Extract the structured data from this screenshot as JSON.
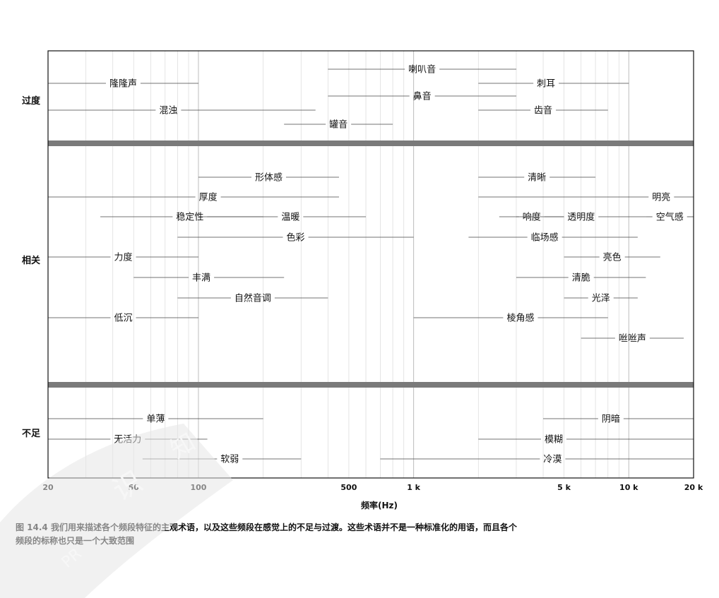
{
  "chart_data": {
    "type": "range",
    "xlabel": "频率(Hz)",
    "xscale": "log",
    "xlim": [
      20,
      20000
    ],
    "xticks": [
      {
        "value": 20,
        "label": "20"
      },
      {
        "value": 50,
        "label": "50"
      },
      {
        "value": 100,
        "label": "100"
      },
      {
        "value": 500,
        "label": "500"
      },
      {
        "value": 1000,
        "label": "1 k"
      },
      {
        "value": 5000,
        "label": "5 k"
      },
      {
        "value": 10000,
        "label": "10 k"
      },
      {
        "value": 20000,
        "label": "20 k"
      }
    ],
    "groups": [
      {
        "name": "过度",
        "terms": [
          {
            "label": "喇叭音",
            "from": 400,
            "to": 3000
          },
          {
            "label": "隆隆声",
            "from": 20,
            "to": 100
          },
          {
            "label": "刺耳",
            "from": 2000,
            "to": 10000
          },
          {
            "label": "鼻音",
            "from": 400,
            "to": 3000
          },
          {
            "label": "混浊",
            "from": 20,
            "to": 350
          },
          {
            "label": "齿音",
            "from": 2000,
            "to": 8000
          },
          {
            "label": "罐音",
            "from": 250,
            "to": 800
          }
        ]
      },
      {
        "name": "相关",
        "terms": [
          {
            "label": "形体感",
            "from": 100,
            "to": 450
          },
          {
            "label": "清晰",
            "from": 2000,
            "to": 7000
          },
          {
            "label": "厚度",
            "from": 20,
            "to": 450
          },
          {
            "label": "明亮",
            "from": 2000,
            "to": 20000
          },
          {
            "label": "温暖",
            "from": 100,
            "to": 600
          },
          {
            "label": "响度",
            "from": 2500,
            "to": 5000
          },
          {
            "label": "空气感",
            "from": 12000,
            "to": 20000
          },
          {
            "label": "稳定性",
            "from": 35,
            "to": 200
          },
          {
            "label": "透明度",
            "from": 3000,
            "to": 12000
          },
          {
            "label": "色彩",
            "from": 80,
            "to": 1000
          },
          {
            "label": "临场感",
            "from": 1800,
            "to": 11000
          },
          {
            "label": "力度",
            "from": 20,
            "to": 100
          },
          {
            "label": "亮色",
            "from": 5000,
            "to": 14000
          },
          {
            "label": "丰满",
            "from": 50,
            "to": 250
          },
          {
            "label": "清脆",
            "from": 3000,
            "to": 12000
          },
          {
            "label": "自然音调",
            "from": 80,
            "to": 400
          },
          {
            "label": "光泽",
            "from": 5000,
            "to": 11000
          },
          {
            "label": "低沉",
            "from": 20,
            "to": 100
          },
          {
            "label": "棱角感",
            "from": 1000,
            "to": 8000
          },
          {
            "label": "咝咝声",
            "from": 6000,
            "to": 18000
          }
        ]
      },
      {
        "name": "不足",
        "terms": [
          {
            "label": "单薄",
            "from": 20,
            "to": 200
          },
          {
            "label": "阴暗",
            "from": 4000,
            "to": 20000
          },
          {
            "label": "无活力",
            "from": 20,
            "to": 110
          },
          {
            "label": "模糊",
            "from": 2000,
            "to": 20000
          },
          {
            "label": "软弱",
            "from": 55,
            "to": 300
          },
          {
            "label": "冷漠",
            "from": 700,
            "to": 20000
          }
        ]
      }
    ],
    "grid": "vertical minor gridlines on log scale"
  },
  "caption": {
    "line1": "图 14.4   我们用来描述各个频段特征的主观术语，以及这些频段在感觉上的不足与过渡。这些术语并不是一种标准化的用语，而且各个",
    "line2": "频段的标称也只是一个大致范围"
  },
  "watermark": {
    "fragments": [
      "知",
      "识",
      "PR"
    ]
  }
}
